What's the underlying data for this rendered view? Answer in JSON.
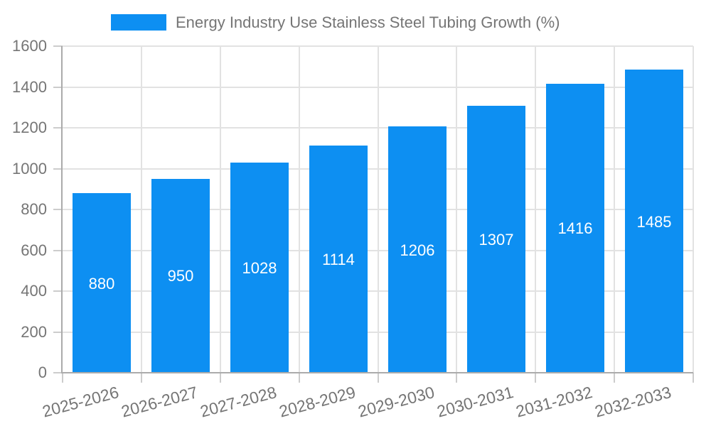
{
  "chart_data": {
    "type": "bar",
    "title": "Energy Industry Use Stainless Steel Tubing Growth (%)",
    "categories": [
      "2025-2026",
      "2026-2027",
      "2027-2028",
      "2028-2029",
      "2029-2030",
      "2030-2031",
      "2031-2032",
      "2032-2033"
    ],
    "values": [
      880,
      950,
      1028,
      1114,
      1206,
      1307,
      1416,
      1485
    ],
    "xlabel": "",
    "ylabel": "",
    "ylim": [
      0,
      1600
    ],
    "ytick_step": 200,
    "yticks": [
      0,
      200,
      400,
      600,
      800,
      1000,
      1200,
      1400,
      1600
    ],
    "grid": true,
    "legend_position": "top",
    "colors": {
      "bar": "#0d8ff2",
      "bar_value_label": "#ffffff",
      "axis_text": "#757575",
      "gridline": "#e2e2e2",
      "axis_line": "#ababab",
      "tick": "#cccccc",
      "background": "#ffffff"
    }
  }
}
